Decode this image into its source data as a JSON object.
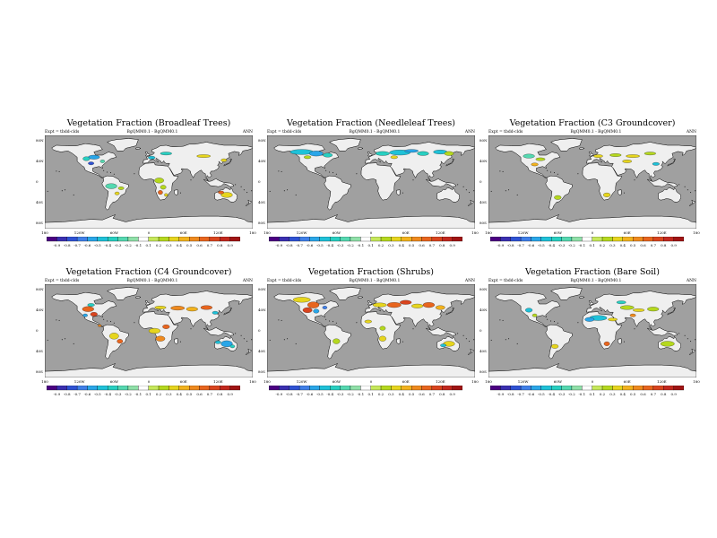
{
  "panels": [
    {
      "title": "Vegetation Fraction (Broadleaf Trees)",
      "expt": "Expt = tbdd-clds",
      "diff": "BgQMM0.1 - BgQMM0.1",
      "season": "ANN"
    },
    {
      "title": "Vegetation Fraction (Needleleaf Trees)",
      "expt": "Expt = tbdd-clds",
      "diff": "BgQMM0.1 - BgQMM0.1",
      "season": "ANN"
    },
    {
      "title": "Vegetation Fraction (C3 Groundcover)",
      "expt": "Expt = tbdd-clds",
      "diff": "BgQMM0.1 - BgQMM0.1",
      "season": "ANN"
    },
    {
      "title": "Vegetation Fraction (C4 Groundcover)",
      "expt": "Expt = tbdd-clds",
      "diff": "BgQMM0.1 - BgQMM0.1",
      "season": "ANN"
    },
    {
      "title": "Vegetation Fraction (Shrubs)",
      "expt": "Expt = tbdd-clds",
      "diff": "BgQMM0.1 - BgQMM0.1",
      "season": "ANN"
    },
    {
      "title": "Vegetation Fraction (Bare Soil)",
      "expt": "Expt = tbdd-clds",
      "diff": "BgQMM0.1 - BgQMM0.1",
      "season": "ANN"
    }
  ],
  "lat_labels": [
    "80N",
    "40N",
    "0",
    "40S",
    "80S"
  ],
  "lon_labels": [
    "180",
    "120W",
    "60W",
    "0",
    "60E",
    "120E",
    "180"
  ],
  "colorbar": {
    "labels": [
      "-0.9",
      "-0.8",
      "-0.7",
      "-0.6",
      "-0.5",
      "-0.4",
      "-0.3",
      "-0.2",
      "-0.1",
      "0.1",
      "0.2",
      "0.3",
      "0.4",
      "0.5",
      "0.6",
      "0.7",
      "0.8",
      "0.9"
    ],
    "colors": [
      "#4b0082",
      "#3a2fb0",
      "#2f52d3",
      "#3f7fe8",
      "#2aa6e8",
      "#1fc1d8",
      "#28cfc1",
      "#55d8b0",
      "#8fe0a8",
      "#ffffff",
      "#c6e85a",
      "#b5d81e",
      "#e6d51e",
      "#f2b21e",
      "#ef8a1e",
      "#e8651e",
      "#d9441e",
      "#c2281e",
      "#a01414"
    ]
  },
  "colors": {
    "ocean": "#a0a0a0",
    "land": "#efefef",
    "coast": "#000000"
  }
}
